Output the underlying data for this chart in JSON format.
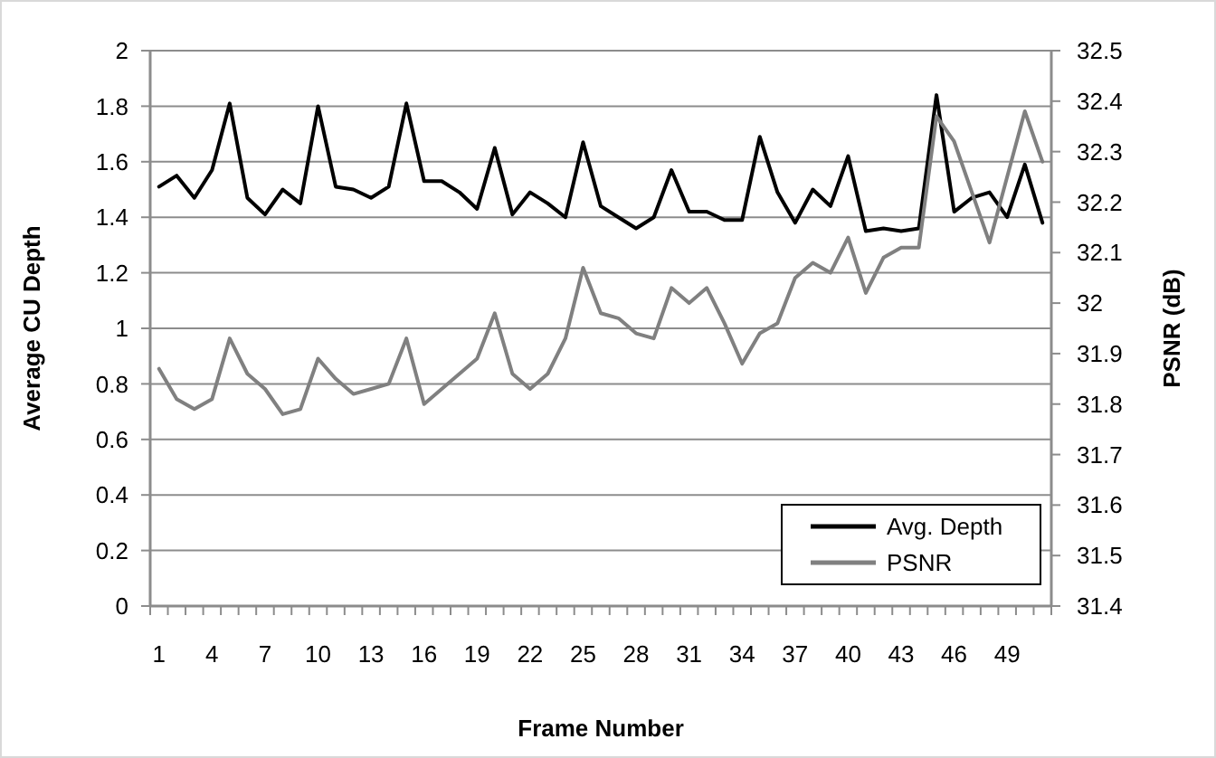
{
  "chart_data": {
    "type": "line",
    "xlabel": "Frame Number",
    "ylabel": "Average CU Depth",
    "y2label": "PSNR (dB)",
    "categories": [
      "1",
      null,
      null,
      "4",
      null,
      null,
      "7",
      null,
      null,
      "10",
      null,
      null,
      "13",
      null,
      null,
      "16",
      null,
      null,
      "19",
      null,
      null,
      "22",
      null,
      null,
      "25",
      null,
      null,
      "28",
      null,
      null,
      "31",
      null,
      null,
      "34",
      null,
      null,
      "37",
      null,
      null,
      "40",
      null,
      null,
      "43",
      null,
      null,
      "46",
      null,
      null,
      "49",
      null,
      null
    ],
    "series": [
      {
        "name": "Avg. Depth",
        "color": "#000000",
        "values": [
          1.51,
          1.55,
          1.47,
          1.57,
          1.81,
          1.47,
          1.41,
          1.5,
          1.45,
          1.8,
          1.51,
          1.5,
          1.47,
          1.51,
          1.81,
          1.53,
          1.53,
          1.49,
          1.43,
          1.65,
          1.41,
          1.49,
          1.45,
          1.4,
          1.67,
          1.44,
          1.4,
          1.36,
          1.4,
          1.57,
          1.42,
          1.42,
          1.39,
          1.39,
          1.69,
          1.49,
          1.38,
          1.5,
          1.44,
          1.62,
          1.35,
          1.36,
          1.35,
          1.36,
          1.84,
          1.42,
          1.47,
          1.49,
          1.4,
          1.59,
          1.38
        ]
      },
      {
        "name": "PSNR",
        "color": "#808080",
        "axis": "y2",
        "values": [
          31.87,
          31.81,
          31.79,
          31.81,
          31.93,
          31.86,
          31.83,
          31.78,
          31.79,
          31.89,
          31.85,
          31.82,
          31.83,
          31.84,
          31.93,
          31.8,
          31.83,
          31.86,
          31.89,
          31.98,
          31.86,
          31.83,
          31.86,
          31.93,
          32.07,
          31.98,
          31.97,
          31.94,
          31.93,
          32.03,
          32.0,
          32.03,
          31.96,
          31.88,
          31.94,
          31.96,
          32.05,
          32.08,
          32.06,
          32.13,
          32.02,
          32.09,
          32.11,
          32.11,
          32.37,
          32.32,
          32.22,
          32.12,
          32.25,
          32.38,
          32.28
        ]
      }
    ],
    "ylim": [
      0,
      2
    ],
    "yticks": [
      0,
      0.2,
      0.4,
      0.6,
      0.8,
      1,
      1.2,
      1.4,
      1.6,
      1.8,
      2
    ],
    "y2lim": [
      31.4,
      32.5
    ],
    "y2ticks": [
      31.4,
      31.5,
      31.6,
      31.7,
      31.8,
      31.9,
      32,
      32.1,
      32.2,
      32.3,
      32.4,
      32.5
    ],
    "grid": "y",
    "legend": "bottom right",
    "marker": "none",
    "line_style": "solid"
  }
}
